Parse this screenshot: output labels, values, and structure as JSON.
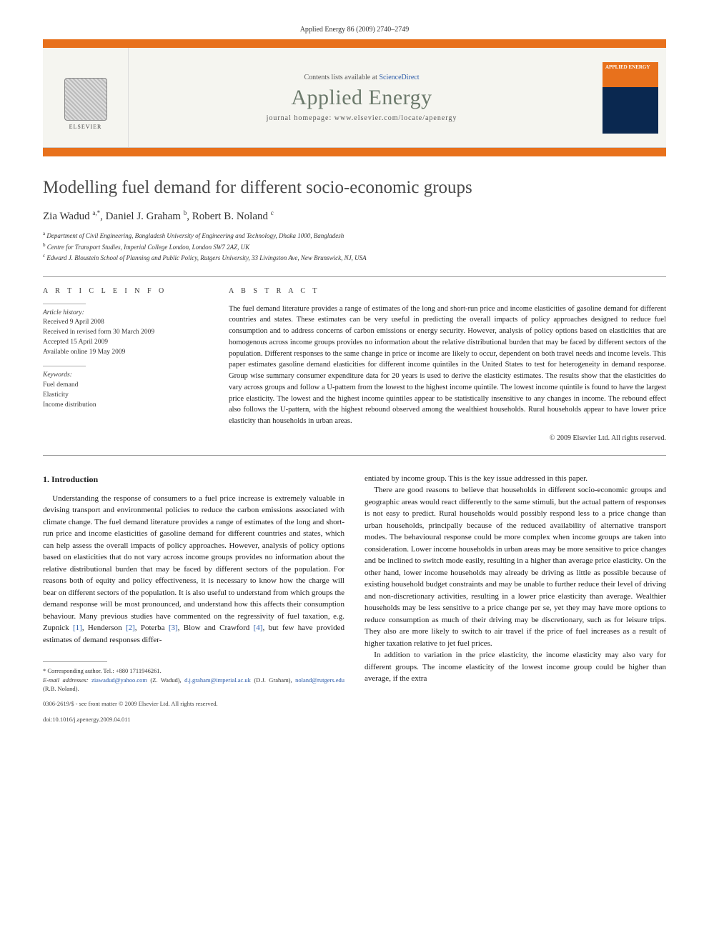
{
  "header": {
    "running_head": "Applied Energy 86 (2009) 2740–2749",
    "contents_line_prefix": "Contents lists available at ",
    "contents_link_text": "ScienceDirect",
    "journal_name": "Applied Energy",
    "homepage_prefix": "journal homepage: ",
    "homepage_url": "www.elsevier.com/locate/apenergy",
    "cover_title": "APPLIED ENERGY",
    "elsevier_label": "ELSEVIER"
  },
  "article": {
    "title": "Modelling fuel demand for different socio-economic groups",
    "authors_html": "Zia Wadud <sup>a,*</sup>, Daniel J. Graham <sup>b</sup>, Robert B. Noland <sup>c</sup>",
    "affiliations": {
      "a": "Department of Civil Engineering, Bangladesh University of Engineering and Technology, Dhaka 1000, Bangladesh",
      "b": "Centre for Transport Studies, Imperial College London, London SW7 2AZ, UK",
      "c": "Edward J. Bloustein School of Planning and Public Policy, Rutgers University, 33 Livingston Ave, New Brunswick, NJ, USA"
    }
  },
  "info": {
    "heading": "A R T I C L E   I N F O",
    "history_label": "Article history:",
    "received": "Received 9 April 2008",
    "revised": "Received in revised form 30 March 2009",
    "accepted": "Accepted 15 April 2009",
    "online": "Available online 19 May 2009",
    "keywords_label": "Keywords:",
    "keywords": [
      "Fuel demand",
      "Elasticity",
      "Income distribution"
    ]
  },
  "abstract": {
    "heading": "A B S T R A C T",
    "text": "The fuel demand literature provides a range of estimates of the long and short-run price and income elasticities of gasoline demand for different countries and states. These estimates can be very useful in predicting the overall impacts of policy approaches designed to reduce fuel consumption and to address concerns of carbon emissions or energy security. However, analysis of policy options based on elasticities that are homogenous across income groups provides no information about the relative distributional burden that may be faced by different sectors of the population. Different responses to the same change in price or income are likely to occur, dependent on both travel needs and income levels. This paper estimates gasoline demand elasticities for different income quintiles in the United States to test for heterogeneity in demand response. Group wise summary consumer expenditure data for 20 years is used to derive the elasticity estimates. The results show that the elasticities do vary across groups and follow a U-pattern from the lowest to the highest income quintile. The lowest income quintile is found to have the largest price elasticity. The lowest and the highest income quintiles appear to be statistically insensitive to any changes in income. The rebound effect also follows the U-pattern, with the highest rebound observed among the wealthiest households. Rural households appear to have lower price elasticity than households in urban areas.",
    "copyright": "© 2009 Elsevier Ltd. All rights reserved."
  },
  "body": {
    "section_heading": "1. Introduction",
    "col1_p1_part1": "Understanding the response of consumers to a fuel price increase is extremely valuable in devising transport and environmental policies to reduce the carbon emissions associated with climate change. The fuel demand literature provides a range of estimates of the long and short-run price and income elasticities of gasoline demand for different countries and states, which can help assess the overall impacts of policy approaches. However, analysis of policy options based on elasticities that do not vary across income groups provides no information about the relative distributional burden that may be faced by different sectors of the population. For reasons both of equity and policy effectiveness, it is necessary to know how the charge will bear on different sectors of the population. It is also useful to understand from which groups the demand response will be most pronounced, and understand how this affects their consumption behaviour. Many previous studies have commented on the regressivity of fuel taxation, e.g. Zupnick ",
    "ref1": "[1]",
    "col1_p1_part2": ", Henderson ",
    "ref2": "[2]",
    "col1_p1_part3": ", Poterba ",
    "ref3": "[3]",
    "col1_p1_part4": ", Blow and Crawford ",
    "ref4": "[4]",
    "col1_p1_part5": ", but few have provided estimates of demand responses differ-",
    "col2_p1": "entiated by income group. This is the key issue addressed in this paper.",
    "col2_p2": "There are good reasons to believe that households in different socio-economic groups and geographic areas would react differently to the same stimuli, but the actual pattern of responses is not easy to predict. Rural households would possibly respond less to a price change than urban households, principally because of the reduced availability of alternative transport modes. The behavioural response could be more complex when income groups are taken into consideration. Lower income households in urban areas may be more sensitive to price changes and be inclined to switch mode easily, resulting in a higher than average price elasticity. On the other hand, lower income households may already be driving as little as possible because of existing household budget constraints and may be unable to further reduce their level of driving and non-discretionary activities, resulting in a lower price elasticity than average. Wealthier households may be less sensitive to a price change per se, yet they may have more options to reduce consumption as much of their driving may be discretionary, such as for leisure trips. They also are more likely to switch to air travel if the price of fuel increases as a result of higher taxation relative to jet fuel prices.",
    "col2_p3": "In addition to variation in the price elasticity, the income elasticity may also vary for different groups. The income elasticity of the lowest income group could be higher than average, if the extra"
  },
  "footnotes": {
    "corr_label": "* Corresponding author. Tel.: +880 1711946261.",
    "email_label": "E-mail addresses:",
    "email1": "ziawadud@yahoo.com",
    "email1_aff": "(Z. Wadud),",
    "email2": "d.j.graham@imperial.ac.uk",
    "email2_aff": "(D.J. Graham),",
    "email3": "noland@rutgers.edu",
    "email3_aff": "(R.B. Noland).",
    "issn_line": "0306-2619/$ - see front matter © 2009 Elsevier Ltd. All rights reserved.",
    "doi_line": "doi:10.1016/j.apenergy.2009.04.011"
  },
  "colors": {
    "accent_orange": "#e8711c",
    "journal_green": "#6c7a6c",
    "link_blue": "#2a5aa8",
    "cover_navy": "#0a2850"
  }
}
